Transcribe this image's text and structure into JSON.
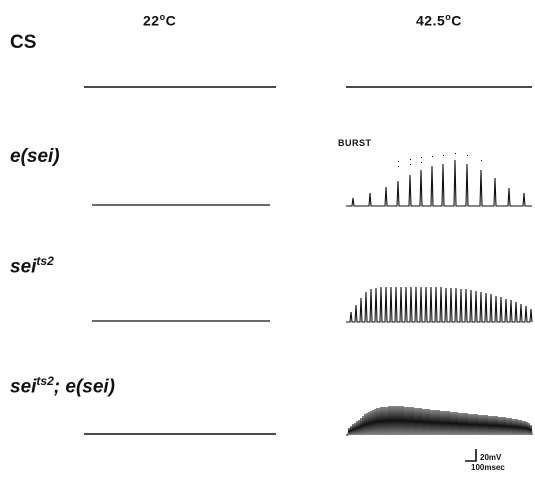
{
  "columns": [
    {
      "label": "22",
      "unit": "C"
    },
    {
      "label": "42.5",
      "unit": "C"
    }
  ],
  "rows": [
    {
      "id": "cs",
      "label": "CS",
      "italic": false
    },
    {
      "id": "e-sei",
      "label": "e(sei)",
      "italic": true
    },
    {
      "id": "sei-ts2",
      "label": "sei",
      "sup": "ts2",
      "italic": true
    },
    {
      "id": "sei-ts2-e-sei",
      "label": "sei",
      "sup": "ts2",
      "suffix": "; e(sei)",
      "italic": true
    }
  ],
  "annotation": "BURST",
  "scale_bar": {
    "voltage": "20mV",
    "time": "100msec"
  },
  "colors": {
    "trace": "#111111",
    "background": "#ffffff"
  }
}
